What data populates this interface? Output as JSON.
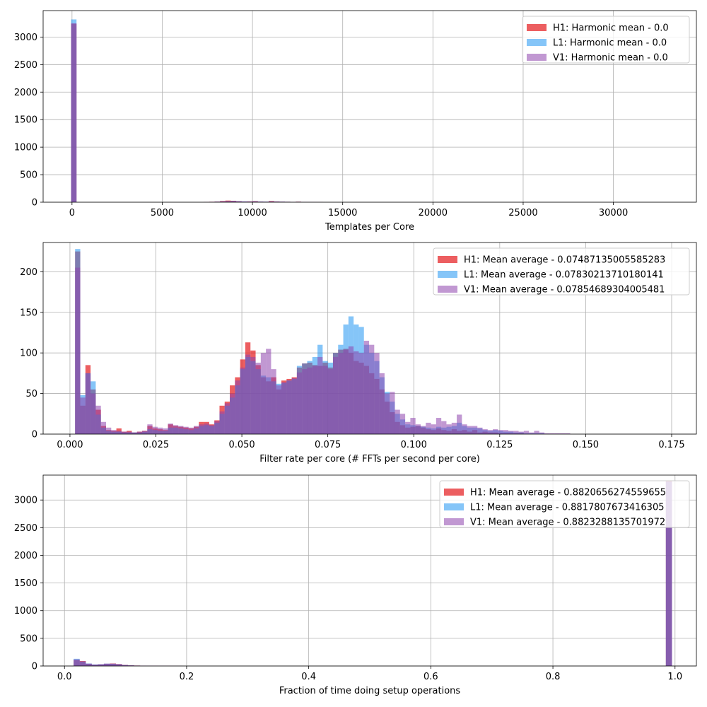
{
  "chart_data": [
    {
      "type": "histogram",
      "xlabel": "Templates per Core",
      "xlim": [
        -1600,
        34600
      ],
      "ylim": [
        0,
        3480
      ],
      "xticks": [
        0,
        5000,
        10000,
        15000,
        20000,
        25000,
        30000
      ],
      "xtick_labels": [
        "0",
        "5000",
        "10000",
        "15000",
        "20000",
        "25000",
        "30000"
      ],
      "yticks": [
        0,
        500,
        1000,
        1500,
        2000,
        2500,
        3000
      ],
      "ytick_labels": [
        "0",
        "500",
        "1000",
        "1500",
        "2000",
        "2500",
        "3000"
      ],
      "grid": true,
      "legend_placement": "top-right",
      "series": [
        {
          "name": "H1: Harmonic mean  - 0.0",
          "color": "#e41a1c",
          "bins": [
            [
              0,
              3240
            ],
            [
              7300,
              5
            ],
            [
              7600,
              8
            ],
            [
              7900,
              12
            ],
            [
              8200,
              22
            ],
            [
              8500,
              30
            ],
            [
              8800,
              26
            ],
            [
              9100,
              18
            ],
            [
              9400,
              12
            ],
            [
              9700,
              15
            ],
            [
              10000,
              20
            ],
            [
              10300,
              10
            ],
            [
              10600,
              8
            ],
            [
              10900,
              22
            ],
            [
              11200,
              14
            ],
            [
              11500,
              10
            ],
            [
              11800,
              8
            ],
            [
              12100,
              6
            ],
            [
              12400,
              10
            ],
            [
              12700,
              6
            ],
            [
              13000,
              5
            ],
            [
              13300,
              4
            ],
            [
              13600,
              3
            ]
          ]
        },
        {
          "name": "L1: Harmonic mean  - 0.0",
          "color": "#2196f3",
          "bins": [
            [
              0,
              3320
            ],
            [
              7300,
              3
            ],
            [
              7600,
              6
            ],
            [
              7900,
              10
            ],
            [
              8200,
              14
            ],
            [
              8500,
              18
            ],
            [
              8800,
              20
            ],
            [
              9100,
              16
            ],
            [
              9400,
              14
            ],
            [
              9700,
              12
            ],
            [
              10000,
              15
            ],
            [
              10300,
              12
            ],
            [
              10600,
              10
            ],
            [
              10900,
              14
            ],
            [
              11200,
              12
            ],
            [
              11500,
              10
            ],
            [
              11800,
              8
            ],
            [
              12100,
              6
            ],
            [
              12400,
              8
            ],
            [
              12700,
              5
            ],
            [
              13000,
              4
            ],
            [
              13300,
              3
            ],
            [
              13600,
              2
            ]
          ]
        },
        {
          "name": "V1: Harmonic mean  - 0.0",
          "color": "#8e44ad",
          "bins": [
            [
              0,
              3250
            ],
            [
              7300,
              4
            ],
            [
              7600,
              7
            ],
            [
              7900,
              10
            ],
            [
              8200,
              16
            ],
            [
              8500,
              20
            ],
            [
              8800,
              22
            ],
            [
              9100,
              18
            ],
            [
              9400,
              14
            ],
            [
              9700,
              13
            ],
            [
              10000,
              16
            ],
            [
              10300,
              12
            ],
            [
              10600,
              9
            ],
            [
              10900,
              15
            ],
            [
              11200,
              12
            ],
            [
              11500,
              9
            ],
            [
              11800,
              7
            ],
            [
              12100,
              6
            ],
            [
              12400,
              7
            ],
            [
              12700,
              5
            ],
            [
              13000,
              4
            ],
            [
              13300,
              3
            ],
            [
              13600,
              2
            ]
          ]
        }
      ]
    },
    {
      "type": "histogram",
      "xlabel": "Filter rate per core (# FFTs per second per core)",
      "xlim": [
        -0.0078,
        0.1822
      ],
      "ylim": [
        0,
        236
      ],
      "xticks": [
        0.0,
        0.025,
        0.05,
        0.075,
        0.1,
        0.125,
        0.15,
        0.175
      ],
      "xtick_labels": [
        "0.000",
        "0.025",
        "0.050",
        "0.075",
        "0.100",
        "0.125",
        "0.150",
        "0.175"
      ],
      "yticks": [
        0,
        50,
        100,
        150,
        200
      ],
      "ytick_labels": [
        "0",
        "50",
        "100",
        "150",
        "200"
      ],
      "grid": true,
      "legend_placement": "top-right",
      "series": [
        {
          "name": "H1: Mean average - 0.07487135005585283",
          "color": "#e41a1c",
          "bin_start": 0.0015,
          "bin_width": 0.0015,
          "counts": [
            225,
            35,
            85,
            55,
            30,
            10,
            5,
            4,
            7,
            3,
            4,
            2,
            3,
            4,
            10,
            7,
            6,
            5,
            12,
            10,
            9,
            8,
            7,
            9,
            15,
            15,
            12,
            17,
            35,
            40,
            60,
            70,
            92,
            113,
            103,
            85,
            70,
            65,
            70,
            55,
            66,
            68,
            70,
            82,
            87,
            88,
            85,
            84,
            88,
            82,
            100,
            104,
            105,
            100,
            90,
            88,
            84,
            75,
            68,
            55,
            40,
            27,
            15,
            11,
            8,
            9,
            10,
            8,
            6,
            5,
            7,
            5,
            4,
            6,
            4,
            5,
            3,
            5,
            2,
            3,
            2,
            2,
            1,
            1,
            1,
            1,
            1,
            0,
            0,
            0,
            0,
            0,
            0,
            0,
            0,
            0,
            0,
            0,
            0,
            0,
            0,
            0,
            0,
            0,
            0,
            0,
            0,
            0,
            0,
            0,
            0,
            0,
            0,
            0,
            0,
            0,
            0
          ]
        },
        {
          "name": "L1: Mean average - 0.07830213710180141",
          "color": "#2196f3",
          "bin_start": 0.0015,
          "bin_width": 0.0015,
          "counts": [
            228,
            48,
            75,
            65,
            24,
            8,
            4,
            3,
            3,
            2,
            2,
            2,
            2,
            3,
            6,
            5,
            4,
            4,
            8,
            8,
            7,
            6,
            5,
            7,
            10,
            11,
            10,
            14,
            25,
            35,
            45,
            60,
            80,
            95,
            90,
            80,
            72,
            70,
            65,
            62,
            63,
            66,
            68,
            84,
            87,
            90,
            95,
            110,
            90,
            88,
            100,
            110,
            135,
            145,
            135,
            132,
            110,
            100,
            90,
            70,
            52,
            40,
            25,
            18,
            12,
            11,
            10,
            9,
            8,
            7,
            9,
            8,
            9,
            10,
            14,
            10,
            8,
            8,
            7,
            5,
            4,
            5,
            4,
            3,
            3,
            2,
            2,
            1,
            1,
            1,
            1,
            0,
            0,
            0,
            0,
            0,
            0,
            0,
            0,
            0,
            0,
            0,
            0,
            0,
            0,
            0,
            0,
            0,
            0,
            0,
            0,
            0,
            0,
            0,
            0,
            0,
            0
          ]
        },
        {
          "name": "V1: Mean average - 0.07854689304005481",
          "color": "#8e44ad",
          "bin_start": 0.0015,
          "bin_width": 0.0015,
          "counts": [
            205,
            45,
            75,
            50,
            35,
            15,
            8,
            5,
            4,
            3,
            3,
            2,
            3,
            4,
            12,
            9,
            8,
            7,
            13,
            11,
            10,
            9,
            8,
            10,
            12,
            13,
            11,
            16,
            28,
            38,
            50,
            66,
            82,
            98,
            95,
            88,
            100,
            105,
            80,
            60,
            64,
            66,
            69,
            76,
            80,
            82,
            84,
            95,
            84,
            80,
            95,
            100,
            104,
            108,
            102,
            100,
            115,
            110,
            100,
            75,
            50,
            52,
            30,
            25,
            15,
            20,
            12,
            10,
            14,
            12,
            20,
            16,
            12,
            14,
            24,
            12,
            10,
            10,
            8,
            6,
            5,
            6,
            5,
            5,
            4,
            4,
            3,
            4,
            2,
            4,
            2,
            1,
            1,
            1,
            1,
            1,
            0,
            0,
            0,
            0,
            0,
            0,
            0,
            0,
            0,
            0,
            0,
            0,
            0,
            0,
            0,
            0,
            0,
            0,
            0,
            0,
            0
          ]
        }
      ]
    },
    {
      "type": "histogram",
      "xlabel": "Fraction of time doing setup operations",
      "xlim": [
        -0.035,
        1.035
      ],
      "ylim": [
        0,
        3450
      ],
      "xticks": [
        0.0,
        0.2,
        0.4,
        0.6,
        0.8,
        1.0
      ],
      "xtick_labels": [
        "0.0",
        "0.2",
        "0.4",
        "0.6",
        "0.8",
        "1.0"
      ],
      "yticks": [
        0,
        500,
        1000,
        1500,
        2000,
        2500,
        3000
      ],
      "ytick_labels": [
        "0",
        "500",
        "1000",
        "1500",
        "2000",
        "2500",
        "3000"
      ],
      "grid": true,
      "legend_placement": "top-right",
      "series": [
        {
          "name": "H1: Mean average - 0.8820656274559655",
          "color": "#e41a1c",
          "bin_start": 0.015,
          "bin_width": 0.0099,
          "counts": [
            110,
            90,
            40,
            25,
            30,
            40,
            45,
            35,
            20,
            12,
            8,
            6,
            5,
            4,
            3,
            3,
            2,
            2
          ],
          "peak_bin": [
            0.99,
            3340
          ]
        },
        {
          "name": "L1: Mean average - 0.8817807673416305",
          "color": "#2196f3",
          "bin_start": 0.015,
          "bin_width": 0.0099,
          "counts": [
            130,
            80,
            45,
            28,
            32,
            42,
            40,
            32,
            18,
            11,
            7,
            5,
            4,
            3,
            3,
            2,
            2,
            2
          ],
          "peak_bin": [
            0.99,
            3330
          ]
        },
        {
          "name": "V1: Mean average - 0.8823288135701972",
          "color": "#8e44ad",
          "bin_start": 0.015,
          "bin_width": 0.0099,
          "counts": [
            120,
            85,
            42,
            26,
            31,
            41,
            42,
            33,
            19,
            11,
            7,
            5,
            4,
            3,
            3,
            2,
            2,
            2
          ],
          "peak_bin": [
            0.99,
            3335
          ]
        }
      ]
    }
  ]
}
